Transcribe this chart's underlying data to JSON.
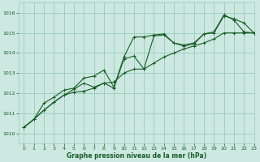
{
  "title": "Graphe pression niveau de la mer (hPa)",
  "background_color": "#cce8e0",
  "grid_color": "#99ccbb",
  "line_color": "#1a5c2a",
  "xlim": [
    -0.5,
    23
  ],
  "ylim": [
    1009.5,
    1016.5
  ],
  "yticks": [
    1010,
    1011,
    1012,
    1013,
    1014,
    1015,
    1016
  ],
  "xticks": [
    0,
    1,
    2,
    3,
    4,
    5,
    6,
    7,
    8,
    9,
    10,
    11,
    12,
    13,
    14,
    15,
    16,
    17,
    18,
    19,
    20,
    21,
    22,
    23
  ],
  "series1_x": [
    0,
    1,
    2,
    3,
    4,
    5,
    6,
    7,
    8,
    9,
    10,
    11,
    12,
    13,
    14,
    15,
    16,
    17,
    18,
    19,
    20,
    21,
    22,
    23
  ],
  "series1_y": [
    1010.3,
    1010.7,
    1011.15,
    1011.55,
    1011.9,
    1012.05,
    1012.1,
    1012.25,
    1012.5,
    1012.55,
    1013.0,
    1013.2,
    1013.2,
    1013.5,
    1013.8,
    1014.0,
    1014.2,
    1014.35,
    1014.5,
    1014.7,
    1015.0,
    1015.0,
    1015.0,
    1015.0
  ],
  "series2_x": [
    0,
    1,
    2,
    3,
    4,
    5,
    6,
    7,
    8,
    9,
    10,
    11,
    12,
    13,
    14,
    15,
    16,
    17,
    18,
    19,
    20,
    21,
    22,
    23
  ],
  "series2_y": [
    1010.3,
    1010.7,
    1011.5,
    1011.8,
    1012.15,
    1012.25,
    1012.75,
    1012.85,
    1013.15,
    1012.3,
    1013.8,
    1014.8,
    1014.8,
    1014.9,
    1014.95,
    1014.5,
    1014.4,
    1014.5,
    1014.95,
    1015.0,
    1015.85,
    1015.7,
    1015.5,
    1015.0
  ],
  "series3_x": [
    0,
    1,
    2,
    3,
    4,
    5,
    6,
    7,
    8,
    9,
    10,
    11,
    12,
    13,
    14,
    15,
    16,
    17,
    18,
    19,
    20,
    21,
    22,
    23
  ],
  "series3_y": [
    1010.3,
    1010.7,
    1011.15,
    1011.55,
    1011.9,
    1012.2,
    1012.5,
    1012.3,
    1012.5,
    1012.25,
    1013.7,
    1013.85,
    1013.2,
    1014.85,
    1014.9,
    1014.5,
    1014.35,
    1014.45,
    1014.95,
    1015.05,
    1015.9,
    1015.65,
    1015.05,
    1015.0
  ]
}
